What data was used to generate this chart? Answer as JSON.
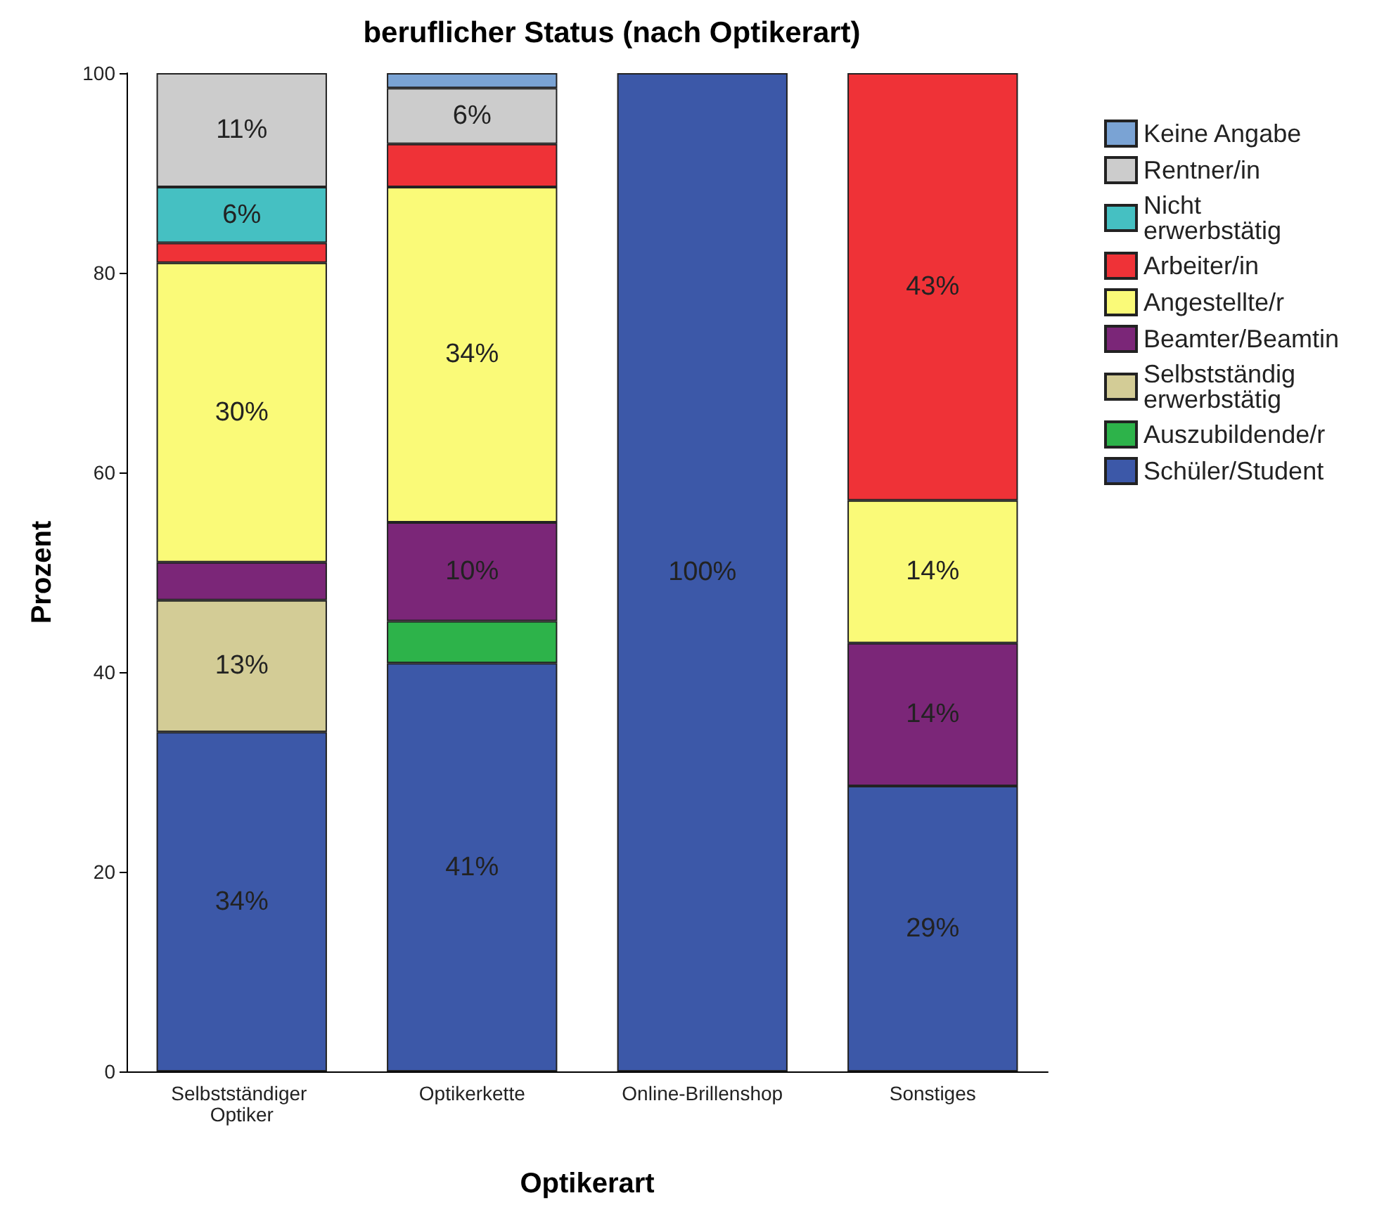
{
  "chart_data": {
    "type": "bar",
    "title": "beruflicher Status (nach Optikerart)",
    "xlabel": "Optikerart",
    "ylabel": "Prozent",
    "categories": [
      "Selbstständiger Optiker",
      "Optikerkette",
      "Online-Brillenshop",
      "Sonstiges"
    ],
    "stacked": true,
    "ylim": [
      0,
      100
    ],
    "yticks": [
      0,
      20,
      40,
      60,
      80,
      100
    ],
    "grid": false,
    "legend": "right",
    "series": [
      {
        "name": "Schüler/Student",
        "color": "#3c58a8",
        "values": [
          34,
          40.9,
          100,
          28.6
        ],
        "value_labels": [
          "34%",
          "41%",
          "100%",
          "29%"
        ]
      },
      {
        "name": "Auszubildende/r",
        "color": "#2db34a",
        "values": [
          null,
          4.2,
          null,
          null
        ],
        "value_labels": [
          null,
          null,
          null,
          null
        ]
      },
      {
        "name": "Selbstständig erwerbstätig",
        "color": "#d3cc96",
        "values": [
          13.2,
          null,
          null,
          null
        ],
        "value_labels": [
          "13%",
          null,
          null,
          null
        ]
      },
      {
        "name": "Beamter/Beamtin",
        "color": "#7b2678",
        "values": [
          3.8,
          9.9,
          null,
          14.3
        ],
        "value_labels": [
          null,
          "10%",
          null,
          "14%"
        ]
      },
      {
        "name": "Angestellte/r",
        "color": "#fafa78",
        "values": [
          30,
          33.6,
          null,
          14.3
        ],
        "value_labels": [
          "30%",
          "34%",
          null,
          "14%"
        ]
      },
      {
        "name": "Arbeiter/in",
        "color": "#ef3237",
        "values": [
          2,
          4.3,
          null,
          42.8
        ],
        "value_labels": [
          null,
          null,
          null,
          "43%"
        ]
      },
      {
        "name": "Nicht erwerbstätig",
        "color": "#45c0c2",
        "values": [
          5.6,
          null,
          null,
          null
        ],
        "value_labels": [
          "6%",
          null,
          null,
          null
        ]
      },
      {
        "name": "Rentner/in",
        "color": "#cccccc",
        "values": [
          11.4,
          5.6,
          null,
          null
        ],
        "value_labels": [
          "11%",
          "6%",
          null,
          null
        ]
      },
      {
        "name": "Keine Angabe",
        "color": "#7aa3d4",
        "values": [
          null,
          1.5,
          null,
          null
        ],
        "value_labels": [
          null,
          null,
          null,
          null
        ]
      }
    ]
  }
}
